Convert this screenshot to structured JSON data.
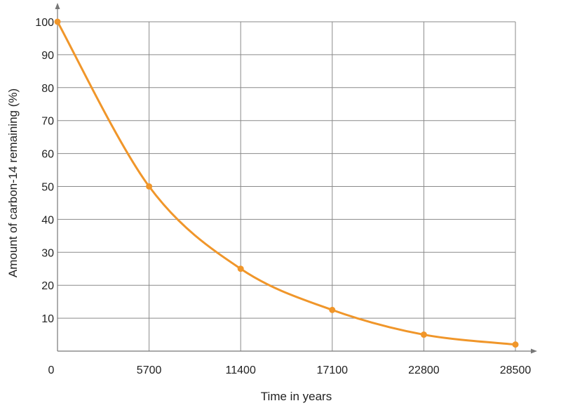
{
  "chart_data": {
    "type": "line",
    "title": "",
    "xlabel": "Time in years",
    "ylabel": "Amount of carbon-14 remaining (%)",
    "x_ticks": [
      0,
      5700,
      11400,
      17100,
      22800,
      28500
    ],
    "y_ticks": [
      10,
      20,
      30,
      40,
      50,
      60,
      70,
      80,
      90,
      100
    ],
    "xlim": [
      0,
      28500
    ],
    "ylim": [
      0,
      100
    ],
    "grid": true,
    "series": [
      {
        "color": "#f0962a",
        "x": [
          0,
          5700,
          11400,
          17100,
          22800,
          28500
        ],
        "y": [
          100,
          50,
          25,
          12.5,
          5,
          2
        ]
      }
    ]
  }
}
